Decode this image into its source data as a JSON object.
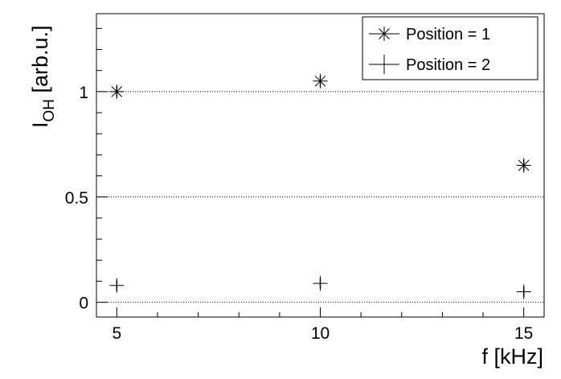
{
  "chart_data": {
    "type": "scatter",
    "xlabel": "f [kHz]",
    "ylabel_main": "I",
    "ylabel_sub": "OH",
    "ylabel_rest": " [arb.u.]",
    "xlim": [
      4.5,
      15.5
    ],
    "ylim": [
      -0.07,
      1.37
    ],
    "x_ticks": [
      5,
      10,
      15
    ],
    "x_tick_labels": [
      "5",
      "10",
      "15"
    ],
    "y_ticks": [
      0,
      0.5,
      1
    ],
    "y_tick_labels": [
      "0",
      "0.5",
      "1"
    ],
    "gridlines_y": [
      0,
      0.5,
      1
    ],
    "legend_placement": "top-right",
    "series": [
      {
        "name": "Position = 1",
        "marker": "asterisk",
        "x": [
          5,
          10,
          15
        ],
        "y": [
          1.0,
          1.05,
          0.65
        ],
        "y_err": [
          0.025,
          0.025,
          0.025
        ]
      },
      {
        "name": "Position = 2",
        "marker": "plus",
        "x": [
          5,
          10,
          15
        ],
        "y": [
          0.08,
          0.09,
          0.05
        ],
        "y_err": [
          0.025,
          0.025,
          0.025
        ]
      }
    ]
  }
}
